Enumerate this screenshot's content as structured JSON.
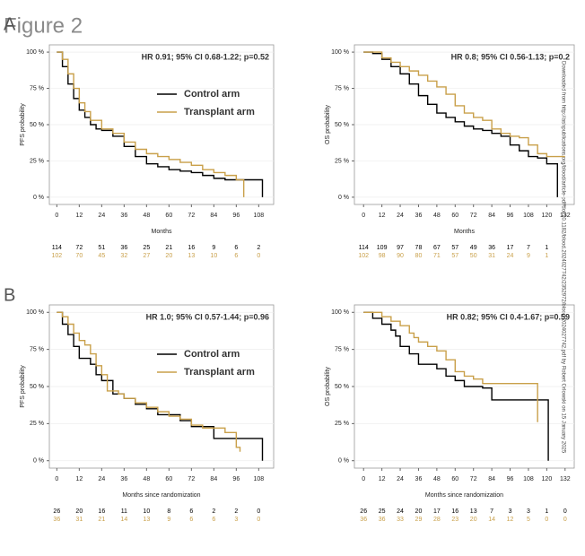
{
  "figure_title": "Figure 2",
  "panel_labels": [
    "A",
    "B"
  ],
  "side_note": "Downloaded from http://ashpublications.org/blood/article-pdf/doi/10.1182/blood.2024027742/2352972/blood.2024027742.pdf by Robert Orlowski on 15 January 2025",
  "chart_data": [
    {
      "type": "line",
      "step": true,
      "annotation": "HR 0.91; 95% CI 0.68-1.22; p=0.52",
      "xlabel": "Months",
      "ylabel": "PFS probability",
      "legend": true,
      "xlim": [
        -4,
        116
      ],
      "ylim": [
        -5,
        105
      ],
      "xticks": [
        0,
        12,
        24,
        36,
        48,
        60,
        72,
        84,
        96,
        108
      ],
      "yticks": [
        {
          "value": 0,
          "label": "0 %"
        },
        {
          "value": 25,
          "label": "25 %"
        },
        {
          "value": 50,
          "label": "50 %"
        },
        {
          "value": 75,
          "label": "75 %"
        },
        {
          "value": 100,
          "label": "100 %"
        }
      ],
      "series": [
        {
          "name": "Control arm",
          "color": "#000000",
          "x": [
            0,
            3,
            6,
            9,
            12,
            15,
            18,
            21,
            24,
            30,
            36,
            42,
            48,
            54,
            60,
            66,
            72,
            78,
            84,
            90,
            108,
            110
          ],
          "values": [
            100,
            90,
            78,
            68,
            60,
            55,
            50,
            47,
            46,
            42,
            35,
            28,
            23,
            21,
            19,
            18,
            17,
            15,
            13,
            12,
            12,
            0
          ],
          "at_risk": [
            114,
            72,
            51,
            36,
            25,
            21,
            16,
            9,
            6,
            2
          ]
        },
        {
          "name": "Transplant arm",
          "color": "#c9a04a",
          "x": [
            0,
            3,
            6,
            9,
            12,
            15,
            18,
            24,
            30,
            36,
            42,
            48,
            54,
            60,
            66,
            72,
            78,
            84,
            90,
            96,
            100
          ],
          "values": [
            100,
            95,
            85,
            75,
            65,
            59,
            53,
            47,
            44,
            38,
            33,
            30,
            28,
            26,
            24,
            22,
            19,
            17,
            15,
            12,
            0
          ],
          "at_risk": [
            102,
            70,
            45,
            32,
            27,
            20,
            13,
            10,
            6,
            0
          ]
        }
      ]
    },
    {
      "type": "line",
      "step": true,
      "annotation": "HR 0.8; 95% CI 0.56-1.13; p=0.2",
      "xlabel": "Months",
      "ylabel": "OS probability",
      "legend": false,
      "xlim": [
        -6,
        138
      ],
      "ylim": [
        -5,
        105
      ],
      "xticks": [
        0,
        12,
        24,
        36,
        48,
        60,
        72,
        84,
        96,
        108,
        120,
        132
      ],
      "yticks": [
        {
          "value": 0,
          "label": "0 %"
        },
        {
          "value": 25,
          "label": "25 %"
        },
        {
          "value": 50,
          "label": "50 %"
        },
        {
          "value": 75,
          "label": "75 %"
        },
        {
          "value": 100,
          "label": "100 %"
        }
      ],
      "series": [
        {
          "color": "#000000",
          "x": [
            0,
            6,
            12,
            18,
            24,
            30,
            36,
            42,
            48,
            54,
            60,
            66,
            72,
            78,
            84,
            90,
            96,
            102,
            108,
            114,
            120,
            126,
            127
          ],
          "values": [
            100,
            99,
            95,
            90,
            85,
            78,
            70,
            64,
            58,
            55,
            52,
            49,
            47,
            46,
            44,
            42,
            36,
            32,
            28,
            27,
            23,
            23,
            0
          ],
          "at_risk": [
            114,
            109,
            97,
            78,
            67,
            57,
            49,
            36,
            17,
            7,
            1
          ]
        },
        {
          "color": "#c9a04a",
          "x": [
            0,
            12,
            18,
            24,
            30,
            36,
            42,
            48,
            54,
            60,
            66,
            72,
            78,
            84,
            90,
            96,
            102,
            108,
            114,
            120,
            132
          ],
          "values": [
            100,
            96,
            93,
            90,
            87,
            84,
            80,
            76,
            71,
            63,
            58,
            55,
            53,
            47,
            44,
            42,
            41,
            36,
            30,
            28,
            28
          ],
          "at_risk": [
            102,
            98,
            90,
            80,
            71,
            57,
            50,
            31,
            24,
            9,
            1
          ]
        }
      ]
    },
    {
      "type": "line",
      "step": true,
      "annotation": "HR 1.0; 95% CI 0.57-1.44; p=0.96",
      "xlabel": "Months since randomization",
      "ylabel": "PFS probability",
      "legend": true,
      "xlim": [
        -4,
        116
      ],
      "ylim": [
        -5,
        105
      ],
      "xticks": [
        0,
        12,
        24,
        36,
        48,
        60,
        72,
        84,
        96,
        108
      ],
      "yticks": [
        {
          "value": 0,
          "label": "0 %"
        },
        {
          "value": 25,
          "label": "25 %"
        },
        {
          "value": 50,
          "label": "50 %"
        },
        {
          "value": 75,
          "label": "75 %"
        },
        {
          "value": 100,
          "label": "100 %"
        }
      ],
      "series": [
        {
          "name": "Control arm",
          "color": "#000000",
          "x": [
            0,
            3,
            6,
            9,
            12,
            18,
            21,
            24,
            30,
            36,
            42,
            48,
            54,
            60,
            66,
            72,
            84,
            108,
            110
          ],
          "values": [
            100,
            92,
            85,
            77,
            69,
            65,
            58,
            54,
            45,
            42,
            38,
            35,
            31,
            31,
            27,
            23,
            15,
            15,
            0
          ],
          "at_risk": [
            26,
            20,
            16,
            11,
            10,
            8,
            6,
            2,
            2,
            0
          ]
        },
        {
          "name": "Transplant arm",
          "color": "#c9a04a",
          "x": [
            0,
            3,
            6,
            9,
            12,
            15,
            18,
            21,
            24,
            27,
            33,
            36,
            42,
            48,
            54,
            60,
            66,
            72,
            78,
            90,
            96,
            98
          ],
          "values": [
            100,
            97,
            92,
            86,
            81,
            78,
            72,
            64,
            58,
            47,
            45,
            42,
            39,
            36,
            33,
            30,
            28,
            24,
            22,
            19,
            9,
            6
          ],
          "at_risk": [
            36,
            31,
            21,
            14,
            13,
            9,
            6,
            6,
            3,
            0
          ]
        }
      ]
    },
    {
      "type": "line",
      "step": true,
      "annotation": "HR 0.82; 95% CI 0.4-1.67; p=0.59",
      "xlabel": "Months since randomization",
      "ylabel": "OS probability",
      "legend": false,
      "xlim": [
        -6,
        138
      ],
      "ylim": [
        -5,
        105
      ],
      "xticks": [
        0,
        12,
        24,
        36,
        48,
        60,
        72,
        84,
        96,
        108,
        120,
        132
      ],
      "yticks": [
        {
          "value": 0,
          "label": "0 %"
        },
        {
          "value": 25,
          "label": "25 %"
        },
        {
          "value": 50,
          "label": "50 %"
        },
        {
          "value": 75,
          "label": "75 %"
        },
        {
          "value": 100,
          "label": "100 %"
        }
      ],
      "series": [
        {
          "color": "#000000",
          "x": [
            0,
            6,
            12,
            18,
            21,
            24,
            30,
            36,
            48,
            54,
            60,
            66,
            78,
            84,
            120,
            121
          ],
          "values": [
            100,
            96,
            92,
            88,
            84,
            77,
            72,
            65,
            62,
            57,
            54,
            50,
            49,
            41,
            41,
            0
          ],
          "at_risk": [
            26,
            25,
            24,
            20,
            17,
            16,
            13,
            7,
            3,
            3,
            1,
            0
          ]
        },
        {
          "color": "#c9a04a",
          "x": [
            0,
            9,
            12,
            18,
            24,
            30,
            33,
            36,
            42,
            48,
            54,
            60,
            66,
            72,
            78,
            108,
            114
          ],
          "values": [
            100,
            100,
            97,
            94,
            91,
            86,
            83,
            80,
            77,
            74,
            68,
            60,
            57,
            55,
            52,
            52,
            26
          ],
          "at_risk": [
            36,
            36,
            33,
            29,
            28,
            23,
            20,
            14,
            12,
            5,
            0,
            0
          ]
        }
      ]
    }
  ]
}
